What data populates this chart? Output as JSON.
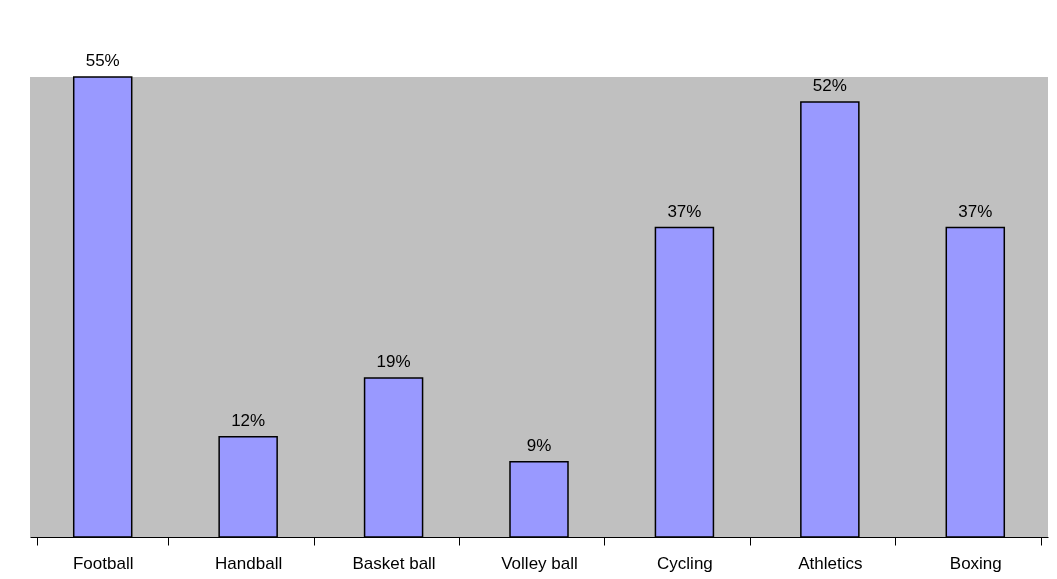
{
  "chart_data": {
    "type": "bar",
    "categories": [
      "Football",
      "Handball",
      "Basket ball",
      "Volley ball",
      "Cycling",
      "Athletics",
      "Boxing"
    ],
    "values": [
      55,
      12,
      19,
      9,
      37,
      52,
      37
    ],
    "value_labels": [
      "55%",
      "12%",
      "19%",
      "9%",
      "37%",
      "52%",
      "37%"
    ],
    "color": "#9999ff"
  }
}
